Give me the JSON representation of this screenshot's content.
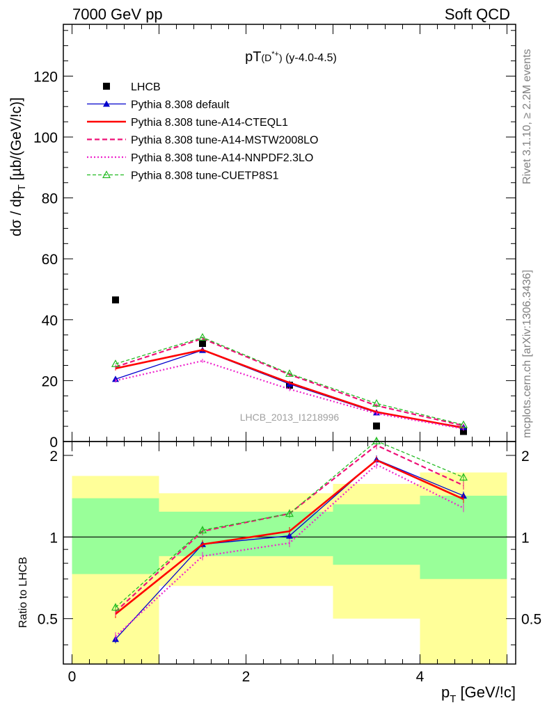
{
  "header": {
    "left": "7000 GeV pp",
    "right": "Soft QCD",
    "plot_title": "pT(D*+) (y-4.0-4.5)",
    "watermark": "LHCB_2013_I1218996",
    "side_top": "Rivet 3.1.10, ≥ 2.2M events",
    "side_bottom": "mcplots.cern.ch [arXiv:1306.3436]"
  },
  "chart_data": [
    {
      "type": "scatter",
      "panel": "main",
      "xlabel": "pT [GeV/c]",
      "ylabel": "dσ / dpT [µb/(GeV/c)]",
      "xlim": [
        -0.1,
        5.1
      ],
      "ylim": [
        0,
        137
      ],
      "y_ticks": [
        0,
        20,
        40,
        60,
        80,
        100,
        120
      ],
      "x": [
        0.5,
        1.5,
        2.5,
        3.5,
        4.5
      ],
      "legend_position": "top-left",
      "series": [
        {
          "name": "LHCB",
          "style": "data",
          "color": "#000000",
          "values": [
            46.5,
            32.2,
            18.5,
            5.1,
            3.3
          ]
        },
        {
          "name": "Pythia 8.308 default",
          "style": "solid-triangle",
          "color": "#0000cc",
          "values": [
            20.5,
            30.0,
            18.9,
            9.5,
            4.7
          ]
        },
        {
          "name": "Pythia 8.308 tune-A14-CTEQL1",
          "style": "solid-thick",
          "color": "#ff0000",
          "values": [
            24.0,
            30.1,
            19.3,
            9.7,
            4.5
          ]
        },
        {
          "name": "Pythia 8.308 tune-A14-MSTW2008LO",
          "style": "dashed",
          "color": "#ee1177",
          "values": [
            24.5,
            33.8,
            22.0,
            11.8,
            5.2
          ]
        },
        {
          "name": "Pythia 8.308 tune-A14-NNPDF2.3LO",
          "style": "dotted",
          "color": "#ee22cc",
          "values": [
            20.0,
            26.5,
            17.2,
            9.2,
            4.2
          ]
        },
        {
          "name": "Pythia 8.308 tune-CUETP8S1",
          "style": "dashed-open-triangle",
          "color": "#22bb22",
          "values": [
            25.5,
            34.2,
            22.3,
            12.5,
            5.5
          ]
        }
      ]
    },
    {
      "type": "line",
      "panel": "ratio",
      "ylabel": "Ratio to LHCB",
      "xlabel": "pT [GeV/c]",
      "ylim": [
        0.34,
        2.25
      ],
      "y_ticks": [
        0.5,
        1,
        2
      ],
      "x_ticks": [
        0,
        2,
        4
      ],
      "bins": [
        [
          0,
          1
        ],
        [
          1,
          2
        ],
        [
          2,
          3
        ],
        [
          3,
          4
        ],
        [
          4,
          5
        ]
      ],
      "band_inner": [
        [
          0.73,
          1.39
        ],
        [
          0.85,
          1.24
        ],
        [
          0.85,
          1.24
        ],
        [
          0.79,
          1.32
        ],
        [
          0.7,
          1.42
        ]
      ],
      "band_outer": [
        [
          0.3,
          1.68
        ],
        [
          0.66,
          1.45
        ],
        [
          0.66,
          1.45
        ],
        [
          0.5,
          1.57
        ],
        [
          0.3,
          1.73
        ]
      ],
      "x": [
        0.5,
        1.5,
        2.5,
        3.5,
        4.5
      ],
      "series": [
        {
          "name": "Pythia 8.308 default",
          "values": [
            0.42,
            0.94,
            1.01,
            1.93,
            1.42
          ]
        },
        {
          "name": "Pythia 8.308 tune-A14-CTEQL1",
          "values": [
            0.52,
            0.94,
            1.05,
            1.92,
            1.38
          ]
        },
        {
          "name": "Pythia 8.308 tune-A14-MSTW2008LO",
          "values": [
            0.53,
            1.05,
            1.22,
            2.18,
            1.55
          ]
        },
        {
          "name": "Pythia 8.308 tune-A14-NNPDF2.3LO",
          "values": [
            0.43,
            0.85,
            0.95,
            1.85,
            1.28
          ]
        },
        {
          "name": "Pythia 8.308 tune-CUETP8S1",
          "values": [
            0.55,
            1.06,
            1.22,
            2.26,
            1.66
          ]
        }
      ]
    }
  ]
}
